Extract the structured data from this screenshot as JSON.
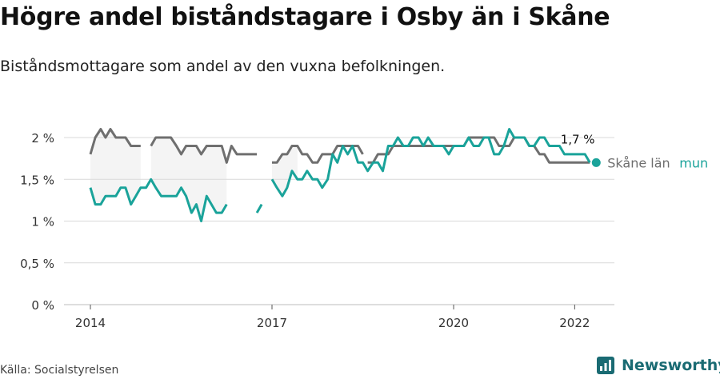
{
  "header": {
    "title": "Högre andel biståndstagare i Osby än i Skåne",
    "subtitle": "Biståndsmottagare som andel av den vuxna befolkningen."
  },
  "footer": {
    "source": "Källa: Socialstyrelsen",
    "brand": "Newsworthy"
  },
  "colors": {
    "kommun": "#1aa39a",
    "lan": "#6f6f6f",
    "band": "#f4f4f4",
    "grid": "#d9d9d9",
    "brand": "#1a6b73"
  },
  "chart_data": {
    "type": "line",
    "title": "Högre andel biståndstagare i Osby än i Skåne",
    "subtitle": "Biståndsmottagare som andel av den vuxna befolkningen.",
    "y_tick_labels": [
      "0 %",
      "0,5 %",
      "1 %",
      "1,5 %",
      "2 %"
    ],
    "y_ticks": [
      0,
      0.5,
      1,
      1.5,
      2
    ],
    "ylim": [
      0,
      2.1
    ],
    "x_tick_labels": [
      "2014",
      "2017",
      "2020",
      "2022"
    ],
    "x_ticks": [
      2014,
      2017,
      2020,
      2022
    ],
    "xlim": [
      2014,
      2022.7
    ],
    "grid": true,
    "legend": "end-of-line labels",
    "end_value_label": "1,7 %",
    "series": [
      {
        "name": "Skåne län",
        "color": "#6f6f6f",
        "x": [
          2014.0,
          2014.08,
          2014.17,
          2014.25,
          2014.33,
          2014.42,
          2014.5,
          2014.58,
          2014.67,
          2014.75,
          2014.83,
          2014.92,
          null,
          2015.0,
          2015.08,
          2015.17,
          2015.25,
          2015.33,
          2015.42,
          2015.5,
          2015.58,
          2015.67,
          2015.75,
          2015.83,
          2015.92,
          2016.0,
          2016.08,
          2016.17,
          2016.25,
          2016.33,
          2016.42,
          2016.5,
          2016.58,
          2016.67,
          2016.75,
          2016.83,
          2016.92,
          2017.0,
          null,
          2017.0,
          2017.08,
          2017.17,
          2017.25,
          2017.33,
          2017.42,
          2017.5,
          2017.58,
          2017.67,
          2017.75,
          2017.83,
          2017.92,
          2018.0,
          2018.08,
          2018.17,
          2018.25,
          2018.33,
          2018.42,
          2018.5,
          2018.58,
          null,
          2018.58,
          2018.67,
          2018.75,
          2018.83,
          2018.92,
          2019.0,
          2019.08,
          2019.17,
          2019.25,
          2019.33,
          2019.42,
          2019.5,
          2019.58,
          2019.67,
          2019.75,
          2019.83,
          2019.92,
          2020.0,
          2020.08,
          2020.17,
          2020.25,
          2020.33,
          2020.42,
          2020.5,
          2020.58,
          2020.67,
          2020.75,
          2020.83,
          2020.92,
          2021.0,
          2021.08,
          2021.17,
          2021.25,
          2021.33,
          2021.42,
          2021.5,
          2021.58,
          2021.67,
          2021.75,
          2021.83,
          2021.92,
          2022.0,
          2022.08,
          2022.17,
          2022.25
        ],
        "values": [
          1.8,
          2.0,
          2.1,
          2.0,
          2.1,
          2.0,
          2.0,
          2.0,
          1.9,
          1.9,
          1.9,
          null,
          null,
          1.9,
          2.0,
          2.0,
          2.0,
          2.0,
          1.9,
          1.8,
          1.9,
          1.9,
          1.9,
          1.8,
          1.9,
          1.9,
          1.9,
          1.9,
          1.7,
          1.9,
          1.8,
          1.8,
          1.8,
          1.8,
          1.8,
          null,
          null,
          null,
          null,
          1.7,
          1.7,
          1.8,
          1.8,
          1.9,
          1.9,
          1.8,
          1.8,
          1.7,
          1.7,
          1.8,
          1.8,
          1.8,
          1.9,
          1.9,
          1.9,
          1.9,
          1.9,
          1.8,
          null,
          null,
          1.7,
          1.7,
          1.8,
          1.8,
          1.8,
          1.9,
          1.9,
          1.9,
          1.9,
          1.9,
          1.9,
          1.9,
          1.9,
          1.9,
          1.9,
          1.9,
          1.9,
          1.9,
          1.9,
          1.9,
          2.0,
          2.0,
          2.0,
          2.0,
          2.0,
          2.0,
          1.9,
          1.9,
          1.9,
          2.0,
          2.0,
          2.0,
          1.9,
          1.9,
          1.8,
          1.8,
          1.7,
          1.7,
          1.7,
          1.7,
          1.7,
          1.7,
          1.7,
          1.7,
          1.7
        ]
      },
      {
        "name": "mun",
        "color": "#1aa39a",
        "x": [
          2014.0,
          2014.08,
          2014.17,
          2014.25,
          2014.33,
          2014.42,
          2014.5,
          2014.58,
          2014.67,
          2014.75,
          2014.83,
          2014.92,
          2015.0,
          2015.08,
          2015.17,
          2015.25,
          2015.33,
          2015.42,
          2015.5,
          2015.58,
          2015.67,
          2015.75,
          2015.83,
          2015.92,
          2016.0,
          2016.08,
          2016.17,
          2016.25,
          2016.33,
          2016.42,
          2016.5,
          2016.58,
          2016.67,
          2016.75,
          2016.83,
          2016.92,
          2017.0,
          2017.08,
          2017.17,
          2017.25,
          2017.33,
          2017.42,
          2017.5,
          2017.58,
          2017.67,
          2017.75,
          2017.83,
          2017.92,
          2018.0,
          2018.08,
          2018.17,
          2018.25,
          2018.33,
          2018.42,
          2018.5,
          2018.58,
          2018.67,
          2018.75,
          2018.83,
          2018.92,
          2019.0,
          2019.08,
          2019.17,
          2019.25,
          2019.33,
          2019.42,
          2019.5,
          2019.58,
          2019.67,
          2019.75,
          2019.83,
          2019.92,
          2020.0,
          2020.08,
          2020.17,
          2020.25,
          2020.33,
          2020.42,
          2020.5,
          2020.58,
          2020.67,
          2020.75,
          2020.83,
          2020.92,
          2021.0,
          2021.08,
          2021.17,
          2021.25,
          2021.33,
          2021.42,
          2021.5,
          2021.58,
          2021.67,
          2021.75,
          2021.83,
          2021.92,
          2022.0,
          2022.08,
          2022.17,
          2022.25
        ],
        "values": [
          1.4,
          1.2,
          1.2,
          1.3,
          1.3,
          1.3,
          1.4,
          1.4,
          1.2,
          1.3,
          1.4,
          1.4,
          1.5,
          1.4,
          1.3,
          1.3,
          1.3,
          1.3,
          1.4,
          1.3,
          1.1,
          1.2,
          1.0,
          1.3,
          1.2,
          1.1,
          1.1,
          1.2,
          null,
          null,
          null,
          null,
          null,
          1.1,
          1.2,
          null,
          1.5,
          1.4,
          1.3,
          1.4,
          1.6,
          1.5,
          1.5,
          1.6,
          1.5,
          1.5,
          1.4,
          1.5,
          1.8,
          1.7,
          1.9,
          1.8,
          1.9,
          1.7,
          1.7,
          1.6,
          1.7,
          1.7,
          1.6,
          1.9,
          1.9,
          2.0,
          1.9,
          1.9,
          2.0,
          2.0,
          1.9,
          2.0,
          1.9,
          1.9,
          1.9,
          1.8,
          1.9,
          1.9,
          1.9,
          2.0,
          1.9,
          1.9,
          2.0,
          2.0,
          1.8,
          1.8,
          1.9,
          2.1,
          2.0,
          2.0,
          2.0,
          1.9,
          1.9,
          2.0,
          2.0,
          1.9,
          1.9,
          1.9,
          1.8,
          1.8,
          1.8,
          1.8,
          1.8,
          1.7
        ]
      }
    ]
  }
}
